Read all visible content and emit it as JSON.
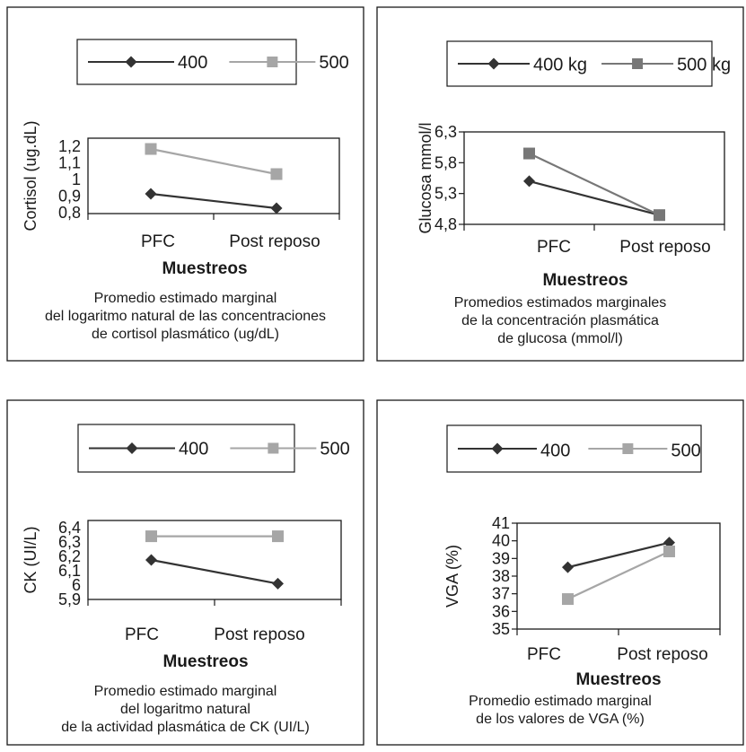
{
  "chart_data": [
    {
      "type": "line",
      "categories": [
        "PFC",
        "Post reposo"
      ],
      "series": [
        {
          "name": "400",
          "values": [
            0.89,
            0.81
          ],
          "color": "#333333",
          "marker": "diamond"
        },
        {
          "name": "500",
          "values": [
            1.14,
            1.0
          ],
          "color": "#a6a6a6",
          "marker": "square"
        }
      ],
      "yticks": [
        "1,2",
        "1,1",
        "1",
        "0,9",
        "0,8"
      ],
      "ytick_values": [
        1.2,
        1.1,
        1.0,
        0.9,
        0.8
      ],
      "ylim": [
        0.78,
        1.2
      ],
      "ylabel": "Cortisol (ug.dL)",
      "xlabel": "Muestreos",
      "caption": [
        "Promedio estimado marginal",
        "del logaritmo natural de las concentraciones",
        "de cortisol plasmático (ug/dL)"
      ],
      "legend_position": "top"
    },
    {
      "type": "line",
      "categories": [
        "PFC",
        "Post reposo"
      ],
      "series": [
        {
          "name": "400 kg",
          "values": [
            5.5,
            4.95
          ],
          "color": "#333333",
          "marker": "diamond"
        },
        {
          "name": "500 kg",
          "values": [
            5.95,
            4.95
          ],
          "color": "#777777",
          "marker": "square"
        }
      ],
      "yticks": [
        "6,3",
        "5,8",
        "5,3",
        "4,8"
      ],
      "ytick_values": [
        6.3,
        5.8,
        5.3,
        4.8
      ],
      "ylim": [
        4.8,
        6.3
      ],
      "ylabel": "Glucosa mmol/l",
      "xlabel": "Muestreos",
      "caption": [
        "Promedios estimados marginales",
        "de la concentración plasmática",
        "de glucosa (mmol/l)"
      ],
      "legend_position": "top"
    },
    {
      "type": "line",
      "categories": [
        "PFC",
        "Post reposo"
      ],
      "series": [
        {
          "name": "400",
          "values": [
            6.15,
            6.0
          ],
          "color": "#333333",
          "marker": "diamond"
        },
        {
          "name": "500",
          "values": [
            6.3,
            6.3
          ],
          "color": "#a6a6a6",
          "marker": "square"
        }
      ],
      "yticks": [
        "6,4",
        "6,3",
        "6,2",
        "6,1",
        "6",
        "5,9"
      ],
      "ytick_values": [
        6.4,
        6.3,
        6.2,
        6.1,
        6.0,
        5.9
      ],
      "ylim": [
        5.9,
        6.4
      ],
      "ylabel": "CK (UI/L)",
      "xlabel": "Muestreos",
      "caption": [
        "Promedio estimado marginal",
        "del logaritmo natural",
        "de la actividad plasmática de CK (UI/L)"
      ],
      "legend_position": "top"
    },
    {
      "type": "line",
      "categories": [
        "PFC",
        "Post reposo"
      ],
      "series": [
        {
          "name": "400",
          "values": [
            38.5,
            39.9
          ],
          "color": "#333333",
          "marker": "diamond"
        },
        {
          "name": "500",
          "values": [
            36.7,
            39.4
          ],
          "color": "#a6a6a6",
          "marker": "square"
        }
      ],
      "yticks": [
        "41",
        "40",
        "39",
        "38",
        "37",
        "36",
        "35"
      ],
      "ytick_values": [
        41,
        40,
        39,
        38,
        37,
        36,
        35
      ],
      "ylim": [
        35,
        41
      ],
      "ylabel": "VGA (%)",
      "xlabel": "Muestreos",
      "caption": [
        "Promedio estimado marginal",
        "de los valores de VGA (%)"
      ],
      "legend_position": "top"
    }
  ]
}
